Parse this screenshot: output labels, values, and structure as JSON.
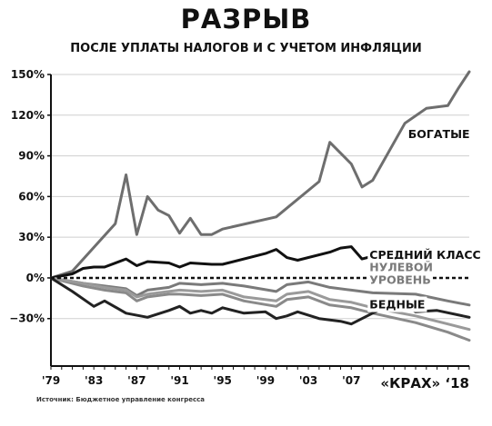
{
  "header": {
    "title": "РАЗРЫВ",
    "subtitle": "ПОСЛЕ УПЛАТЫ НАЛОГОВ И С УЧЕТОМ ИНФЛЯЦИИ"
  },
  "source": "Источник: Бюджетное управление конгресса",
  "chart_data": {
    "type": "line",
    "ylim": [
      -65,
      150
    ],
    "y_ticks": [
      150,
      120,
      90,
      60,
      30,
      0,
      -30
    ],
    "y_tick_labels": [
      "150%",
      "120%",
      "90%",
      "60%",
      "30%",
      "0%",
      "−30%"
    ],
    "xlim": [
      1979,
      2018
    ],
    "x_ticks": [
      1979,
      1983,
      1987,
      1991,
      1995,
      1999,
      2003,
      2007
    ],
    "x_tick_labels": [
      "'79",
      "'83",
      "'87",
      "'91",
      "'95",
      "'99",
      "'03",
      "'07"
    ],
    "zero_line": "dashed",
    "series": [
      {
        "name": "БОГАТЫЕ",
        "color": "#6e6e6e",
        "width": 3,
        "points": [
          [
            1979,
            0
          ],
          [
            1981,
            5
          ],
          [
            1985,
            40
          ],
          [
            1986,
            76
          ],
          [
            1987,
            32
          ],
          [
            1988,
            60
          ],
          [
            1989,
            50
          ],
          [
            1990,
            46
          ],
          [
            1991,
            33
          ],
          [
            1992,
            44
          ],
          [
            1993,
            32
          ],
          [
            1994,
            32
          ],
          [
            1995,
            36
          ],
          [
            2000,
            45
          ],
          [
            2004,
            71
          ],
          [
            2005,
            100
          ],
          [
            2007,
            84
          ],
          [
            2008,
            67
          ],
          [
            2009,
            72
          ],
          [
            2012,
            114
          ],
          [
            2014,
            125
          ],
          [
            2016,
            127
          ],
          [
            2017,
            140
          ],
          [
            2018,
            152
          ]
        ]
      },
      {
        "name": "СРЕДНИЙ КЛАСС",
        "color": "#111111",
        "width": 3,
        "points": [
          [
            1979,
            0
          ],
          [
            1981,
            3
          ],
          [
            1982,
            7
          ],
          [
            1983,
            8
          ],
          [
            1984,
            8
          ],
          [
            1986,
            14
          ],
          [
            1987,
            9
          ],
          [
            1988,
            12
          ],
          [
            1990,
            11
          ],
          [
            1991,
            8
          ],
          [
            1992,
            11
          ],
          [
            1994,
            10
          ],
          [
            1995,
            10
          ],
          [
            1999,
            18
          ],
          [
            2000,
            21
          ],
          [
            2001,
            15
          ],
          [
            2002,
            13
          ],
          [
            2005,
            19
          ],
          [
            2006,
            22
          ],
          [
            2007,
            23
          ],
          [
            2008,
            14
          ],
          [
            2010,
            18
          ],
          [
            2016,
            16
          ],
          [
            2018,
            13
          ]
        ]
      },
      {
        "name": "НУЛЕВОЙ УРОВЕНЬ",
        "color": "#7a7a7a",
        "width": 3,
        "points": [
          [
            1979,
            0
          ],
          [
            1982,
            -4
          ],
          [
            1984,
            -6
          ],
          [
            1986,
            -8
          ],
          [
            1987,
            -13
          ],
          [
            1988,
            -9
          ],
          [
            1990,
            -7
          ],
          [
            1991,
            -4
          ],
          [
            1993,
            -5
          ],
          [
            1995,
            -4
          ],
          [
            1997,
            -6
          ],
          [
            2000,
            -10
          ],
          [
            2001,
            -5
          ],
          [
            2003,
            -3
          ],
          [
            2005,
            -7
          ],
          [
            2007,
            -9
          ],
          [
            2009,
            -11
          ],
          [
            2013,
            -12
          ],
          [
            2016,
            -17
          ],
          [
            2018,
            -20
          ]
        ]
      },
      {
        "name": "",
        "color": "#8a8a8a",
        "width": 3,
        "points": [
          [
            1979,
            0
          ],
          [
            1982,
            -6
          ],
          [
            1984,
            -9
          ],
          [
            1986,
            -11
          ],
          [
            1987,
            -17
          ],
          [
            1988,
            -14
          ],
          [
            1990,
            -12
          ],
          [
            1991,
            -12
          ],
          [
            1993,
            -13
          ],
          [
            1995,
            -12
          ],
          [
            1997,
            -17
          ],
          [
            2000,
            -21
          ],
          [
            2001,
            -16
          ],
          [
            2003,
            -14
          ],
          [
            2005,
            -20
          ],
          [
            2007,
            -22
          ],
          [
            2009,
            -26
          ],
          [
            2013,
            -33
          ],
          [
            2016,
            -40
          ],
          [
            2018,
            -46
          ]
        ]
      },
      {
        "name": "",
        "color": "#9a9a9a",
        "width": 3,
        "points": [
          [
            1979,
            0
          ],
          [
            1982,
            -4
          ],
          [
            1984,
            -7
          ],
          [
            1986,
            -9
          ],
          [
            1987,
            -14
          ],
          [
            1988,
            -12
          ],
          [
            1990,
            -10
          ],
          [
            1991,
            -9
          ],
          [
            1993,
            -10
          ],
          [
            1995,
            -9
          ],
          [
            1997,
            -14
          ],
          [
            2000,
            -17
          ],
          [
            2001,
            -12
          ],
          [
            2003,
            -10
          ],
          [
            2005,
            -16
          ],
          [
            2007,
            -18
          ],
          [
            2009,
            -22
          ],
          [
            2013,
            -28
          ],
          [
            2016,
            -34
          ],
          [
            2018,
            -38
          ]
        ]
      },
      {
        "name": "БЕДНЫЕ",
        "color": "#222222",
        "width": 3,
        "points": [
          [
            1979,
            0
          ],
          [
            1981,
            -10
          ],
          [
            1983,
            -21
          ],
          [
            1984,
            -17
          ],
          [
            1986,
            -26
          ],
          [
            1988,
            -29
          ],
          [
            1990,
            -24
          ],
          [
            1991,
            -21
          ],
          [
            1992,
            -26
          ],
          [
            1993,
            -24
          ],
          [
            1994,
            -26
          ],
          [
            1995,
            -22
          ],
          [
            1997,
            -26
          ],
          [
            1999,
            -25
          ],
          [
            2000,
            -30
          ],
          [
            2001,
            -28
          ],
          [
            2002,
            -25
          ],
          [
            2004,
            -30
          ],
          [
            2006,
            -32
          ],
          [
            2007,
            -34
          ],
          [
            2008,
            -30
          ],
          [
            2010,
            -22
          ],
          [
            2012,
            -20
          ],
          [
            2013,
            -25
          ],
          [
            2015,
            -24
          ],
          [
            2018,
            -29
          ]
        ]
      }
    ],
    "labels": [
      {
        "text": "БОГАТЫЕ",
        "x": 2012.3,
        "y": 103,
        "color": "#111111"
      },
      {
        "text": "СРЕДНИЙ КЛАСС",
        "x": 2008.7,
        "y": 14,
        "color": "#111111"
      },
      {
        "text": "НУЛЕВОЙ",
        "x": 2008.7,
        "y": 5,
        "color": "#7a7a7a"
      },
      {
        "text": "УРОВЕНЬ",
        "x": 2008.7,
        "y": -4.5,
        "color": "#7a7a7a"
      },
      {
        "text": "БЕДНЫЕ",
        "x": 2008.7,
        "y": -22.5,
        "color": "#111111"
      }
    ],
    "brand": "«КРАХ» ‘18"
  }
}
